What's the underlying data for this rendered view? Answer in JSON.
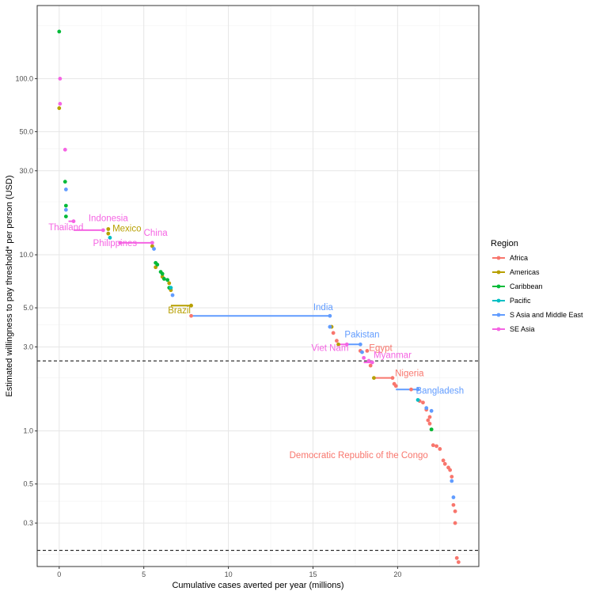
{
  "chart_data": {
    "type": "scatter",
    "xlabel": "Cumulative cases averted per year (millions)",
    "ylabel": "Estimated willingness to pay threshold* per person (USD)",
    "x_scale": "linear",
    "y_scale": "log10",
    "xlim": [
      -1.3,
      24.8
    ],
    "ylim": [
      0.17,
      260
    ],
    "x_ticks": [
      0,
      5,
      10,
      15,
      20
    ],
    "x_tick_labels": [
      "0",
      "5",
      "10",
      "15",
      "20"
    ],
    "y_ticks": [
      0.3,
      0.5,
      1,
      3,
      5,
      10,
      30,
      50,
      100
    ],
    "y_tick_labels": [
      "0.3",
      "0.5",
      "1.0",
      "3.0",
      "5.0",
      "10.0",
      "30.0",
      "50.0",
      "100.0"
    ],
    "y_minor_ticks": [
      0.2,
      0.4,
      2,
      4,
      20,
      40,
      200
    ],
    "grid": true,
    "reference_lines_y": [
      2.5,
      0.21
    ],
    "legend": {
      "title": "Region",
      "position": "right",
      "entries": [
        {
          "name": "Africa",
          "color": "#F8766D"
        },
        {
          "name": "Americas",
          "color": "#B79F00"
        },
        {
          "name": "Caribbean",
          "color": "#00BA38"
        },
        {
          "name": "Pacific",
          "color": "#00BFC4"
        },
        {
          "name": "S Asia and Middle East",
          "color": "#619CFF"
        },
        {
          "name": "SE Asia",
          "color": "#F564E3"
        }
      ]
    },
    "segments": [
      {
        "region": "SE Asia",
        "x0": 0.55,
        "x1": 0.85,
        "y": 15.5
      },
      {
        "region": "SE Asia",
        "x0": 0.85,
        "x1": 2.6,
        "y": 13.8
      },
      {
        "region": "SE Asia",
        "x0": 3.6,
        "x1": 5.5,
        "y": 11.7
      },
      {
        "region": "Americas",
        "x0": 6.6,
        "x1": 7.8,
        "y": 5.15
      },
      {
        "region": "S Asia and Middle East",
        "x0": 7.9,
        "x1": 16.0,
        "y": 4.5
      },
      {
        "region": "SE Asia",
        "x0": 16.4,
        "x1": 17.0,
        "y": 3.1
      },
      {
        "region": "S Asia and Middle East",
        "x0": 17.0,
        "x1": 17.8,
        "y": 3.1
      },
      {
        "region": "SE Asia",
        "x0": 18.0,
        "x1": 18.5,
        "y": 2.45
      },
      {
        "region": "Africa",
        "x0": 18.5,
        "x1": 19.7,
        "y": 2.0
      },
      {
        "region": "S Asia and Middle East",
        "x0": 19.9,
        "x1": 21.2,
        "y": 1.72
      }
    ],
    "series": [
      {
        "name": "Africa",
        "color": "#F8766D",
        "points": [
          [
            7.8,
            4.5
          ],
          [
            16.2,
            3.6
          ],
          [
            16.4,
            3.25
          ],
          [
            17.8,
            2.85
          ],
          [
            18.2,
            2.85
          ],
          [
            18.4,
            2.35
          ],
          [
            19.7,
            2.0
          ],
          [
            19.8,
            1.85
          ],
          [
            19.9,
            1.8
          ],
          [
            20.8,
            1.72
          ],
          [
            21.3,
            1.48
          ],
          [
            21.5,
            1.45
          ],
          [
            21.7,
            1.32
          ],
          [
            21.9,
            1.2
          ],
          [
            21.8,
            1.15
          ],
          [
            21.9,
            1.1
          ],
          [
            22.0,
            1.02
          ],
          [
            22.1,
            0.83
          ],
          [
            22.3,
            0.82
          ],
          [
            22.5,
            0.79
          ],
          [
            22.7,
            0.68
          ],
          [
            22.8,
            0.65
          ],
          [
            23.0,
            0.62
          ],
          [
            23.1,
            0.6
          ],
          [
            23.2,
            0.55
          ],
          [
            23.3,
            0.38
          ],
          [
            23.4,
            0.35
          ],
          [
            23.4,
            0.3
          ],
          [
            23.5,
            0.19
          ],
          [
            23.6,
            0.18
          ]
        ]
      },
      {
        "name": "Americas",
        "color": "#B79F00",
        "points": [
          [
            0.0,
            68.0
          ],
          [
            2.9,
            14.0
          ],
          [
            2.9,
            13.2
          ],
          [
            5.5,
            11.2
          ],
          [
            5.7,
            8.5
          ],
          [
            6.1,
            7.5
          ],
          [
            6.5,
            6.9
          ],
          [
            6.6,
            6.3
          ],
          [
            7.8,
            5.15
          ],
          [
            16.1,
            3.9
          ],
          [
            16.5,
            3.1
          ],
          [
            18.6,
            2.0
          ]
        ]
      },
      {
        "name": "Caribbean",
        "color": "#00BA38",
        "points": [
          [
            0.0,
            185.0
          ],
          [
            0.35,
            26.0
          ],
          [
            0.4,
            19.0
          ],
          [
            0.4,
            16.5
          ],
          [
            5.7,
            9.0
          ],
          [
            5.8,
            8.8
          ],
          [
            6.0,
            8.0
          ],
          [
            6.1,
            7.8
          ],
          [
            6.2,
            7.3
          ],
          [
            6.4,
            7.2
          ],
          [
            6.5,
            6.5
          ],
          [
            22.0,
            1.02
          ]
        ]
      },
      {
        "name": "Pacific",
        "color": "#00BFC4",
        "points": [
          [
            3.0,
            12.5
          ],
          [
            6.6,
            6.5
          ],
          [
            21.2,
            1.5
          ]
        ]
      },
      {
        "name": "S Asia and Middle East",
        "color": "#619CFF",
        "points": [
          [
            0.4,
            23.5
          ],
          [
            0.4,
            18.0
          ],
          [
            5.6,
            10.8
          ],
          [
            6.7,
            5.9
          ],
          [
            16.0,
            4.5
          ],
          [
            16.0,
            3.9
          ],
          [
            17.8,
            3.1
          ],
          [
            17.9,
            2.8
          ],
          [
            21.2,
            1.72
          ],
          [
            21.7,
            1.35
          ],
          [
            22.0,
            1.3
          ],
          [
            23.2,
            0.52
          ],
          [
            23.3,
            0.42
          ]
        ]
      },
      {
        "name": "SE Asia",
        "color": "#F564E3",
        "points": [
          [
            0.05,
            100.0
          ],
          [
            0.05,
            72.0
          ],
          [
            0.35,
            39.5
          ],
          [
            0.85,
            15.5
          ],
          [
            2.6,
            13.8
          ],
          [
            3.6,
            11.7
          ],
          [
            5.5,
            11.7
          ],
          [
            17.0,
            3.1
          ],
          [
            18.0,
            2.6
          ],
          [
            18.3,
            2.5
          ],
          [
            18.5,
            2.45
          ]
        ]
      }
    ],
    "annotations": [
      {
        "text": "Indonesia",
        "region": "SE Asia",
        "x": 2.9,
        "y": 15.5,
        "anchor": "middle"
      },
      {
        "text": "Thailand",
        "region": "SE Asia",
        "x": 0.4,
        "y": 13.8,
        "anchor": "middle"
      },
      {
        "text": "Mexico",
        "region": "Americas",
        "x": 4.0,
        "y": 13.6,
        "anchor": "middle"
      },
      {
        "text": "China",
        "region": "SE Asia",
        "x": 5.7,
        "y": 12.8,
        "anchor": "middle"
      },
      {
        "text": "Philippines",
        "region": "SE Asia",
        "x": 3.3,
        "y": 11.2,
        "anchor": "middle"
      },
      {
        "text": "Brazil",
        "region": "Americas",
        "x": 7.1,
        "y": 4.65,
        "anchor": "middle"
      },
      {
        "text": "India",
        "region": "S Asia and Middle East",
        "x": 15.6,
        "y": 4.85,
        "anchor": "middle"
      },
      {
        "text": "Pakistan",
        "region": "S Asia and Middle East",
        "x": 17.9,
        "y": 3.4,
        "anchor": "middle"
      },
      {
        "text": "Viet Nam",
        "region": "SE Asia",
        "x": 16.0,
        "y": 2.85,
        "anchor": "middle"
      },
      {
        "text": "Egypt",
        "region": "Africa",
        "x": 19.0,
        "y": 2.85,
        "anchor": "middle"
      },
      {
        "text": "Myanmar",
        "region": "SE Asia",
        "x": 19.7,
        "y": 2.6,
        "anchor": "middle"
      },
      {
        "text": "Nigeria",
        "region": "Africa",
        "x": 20.7,
        "y": 2.05,
        "anchor": "middle"
      },
      {
        "text": "Bangladesh",
        "region": "S Asia and Middle East",
        "x": 22.5,
        "y": 1.63,
        "anchor": "middle"
      },
      {
        "text": "Democratic Republic of the Congo",
        "region": "Africa",
        "x": 17.7,
        "y": 0.7,
        "anchor": "middle"
      }
    ]
  }
}
